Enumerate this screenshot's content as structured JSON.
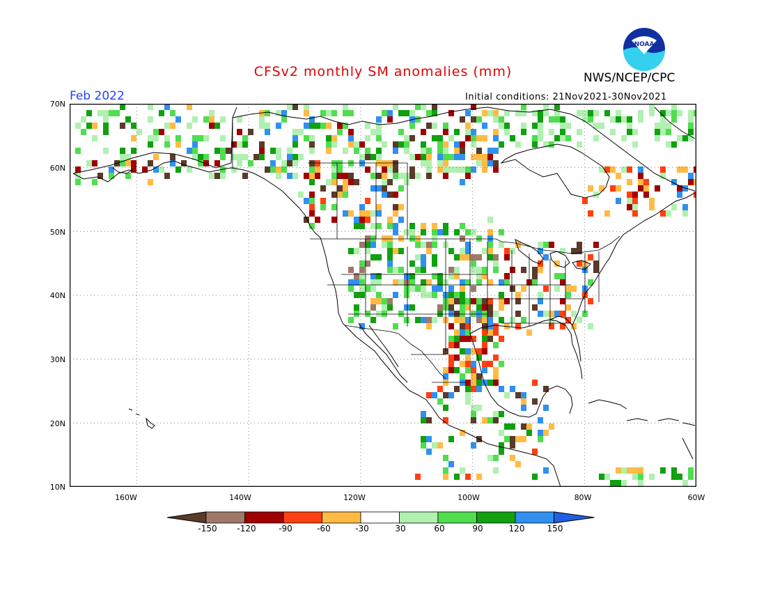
{
  "title": "CFSv2 monthly SM anomalies (mm)",
  "valid_month": "Feb 2022",
  "agency": "NWS/NCEP/CPC",
  "logo_text": "NOAA",
  "initial_conditions": "Initial conditions: 21Nov2021-30Nov2021",
  "map": {
    "projection": "cylindrical",
    "lon_range": [
      -172,
      -60
    ],
    "lat_range": [
      10,
      70
    ],
    "lat_labels": [
      "70N",
      "60N",
      "50N",
      "40N",
      "30N",
      "20N",
      "10N"
    ],
    "lon_labels": [
      "160W",
      "140W",
      "120W",
      "100W",
      "80W",
      "60W"
    ],
    "grid": "dotted"
  },
  "colorbar": {
    "labels": [
      "-150",
      "-120",
      "-90",
      "-60",
      "-30",
      "30",
      "60",
      "90",
      "120",
      "150"
    ],
    "colors": [
      "#5a3a2a",
      "#a0786a",
      "#a00000",
      "#ff4010",
      "#ffbb44",
      "#ffffff",
      "#b0f0b0",
      "#50dd50",
      "#10a010",
      "#3090f0",
      "#2060e0"
    ]
  }
}
